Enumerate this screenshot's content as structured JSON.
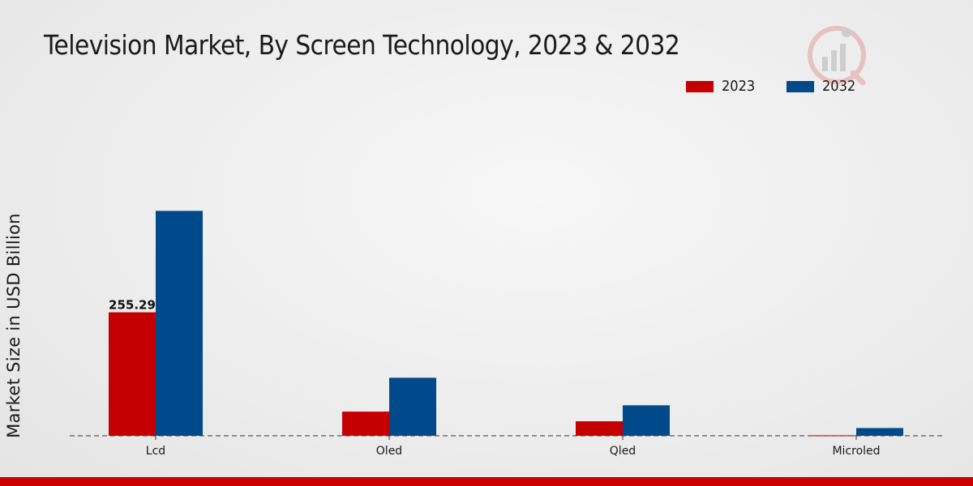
{
  "colors": {
    "series_2023": "#c40000",
    "series_2032": "#004a8b",
    "bottom_bar": "#cc0000"
  },
  "chart_data": {
    "type": "bar",
    "title": "Television Market, By Screen Technology, 2023 & 2032",
    "xlabel": "",
    "ylabel": "Market Size in USD Billion",
    "categories": [
      "Lcd",
      "Oled",
      "Qled",
      "Microled"
    ],
    "series": [
      {
        "name": "2023",
        "values": [
          255.29,
          50.0,
          30.0,
          1.0
        ]
      },
      {
        "name": "2032",
        "values": [
          465.0,
          120.0,
          63.0,
          16.0
        ]
      }
    ],
    "data_labels": [
      {
        "series": 0,
        "index": 0,
        "text": "255.29"
      }
    ],
    "ylim": [
      0,
      700
    ],
    "legend_position": "top-right",
    "grid": false
  }
}
